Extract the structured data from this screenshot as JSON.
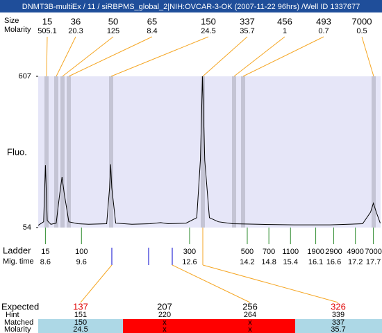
{
  "title": "DNMT3B-multiEx / 11 / siRBPMS_global_2|NIH:OVCAR-3-OK (2007-11-22 96hrs) /Well ID 1337677",
  "peaks": {
    "size_label": "Size",
    "molarity_label": "Molarity",
    "sizes": [
      15,
      36,
      50,
      65,
      150,
      337,
      456,
      493,
      7000
    ],
    "molarity": [
      505.1,
      20.3,
      125,
      8.4,
      24.5,
      35.7,
      1,
      0.7,
      0.5
    ]
  },
  "chart_data": {
    "type": "line",
    "ylabel": "Fluo.",
    "color": "#000000",
    "x": [
      8.4,
      8.55,
      8.6,
      8.65,
      8.75,
      8.9,
      9.0,
      9.06,
      9.12,
      9.25,
      9.5,
      9.8,
      10.3,
      10.38,
      10.41,
      10.44,
      10.55,
      11.0,
      11.5,
      11.8,
      12.0,
      12.5,
      12.8,
      12.9,
      12.96,
      13.02,
      13.15,
      13.4,
      13.8,
      14.5,
      15.5,
      16.5,
      17.4,
      17.62,
      17.7,
      17.78,
      17.89
    ],
    "y": [
      62,
      75,
      282,
      80,
      66,
      70,
      180,
      239,
      180,
      75,
      68,
      66,
      68,
      200,
      285,
      200,
      70,
      66,
      68,
      72,
      68,
      70,
      90,
      300,
      607,
      300,
      90,
      75,
      68,
      66,
      64,
      64,
      68,
      110,
      143,
      110,
      70
    ],
    "xlim": [
      8.4,
      17.9
    ],
    "ylim": [
      54,
      607
    ],
    "yticks": [
      54,
      607
    ]
  },
  "ladder": {
    "label": "Ladder",
    "time_label": "Mig. time",
    "sizes": [
      15,
      100,
      300,
      500,
      700,
      1100,
      1900,
      2900,
      4900,
      7000
    ],
    "times": [
      8.6,
      9.6,
      12.6,
      14.2,
      14.8,
      15.4,
      16.1,
      16.6,
      17.2,
      17.7
    ]
  },
  "expected": {
    "labels": [
      "Expected",
      "Hint",
      "Matched",
      "Molarity"
    ],
    "expected": [
      137,
      207,
      256,
      326
    ],
    "hint": [
      151,
      220,
      264,
      339
    ],
    "matched": [
      "150",
      "x",
      "x",
      "337"
    ],
    "molarity": [
      "24.5",
      "x",
      "x",
      "35.7"
    ]
  }
}
